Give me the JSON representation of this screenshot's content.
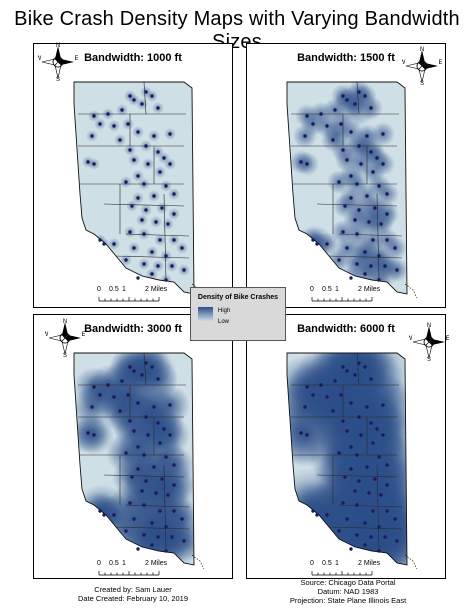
{
  "title": "Bike Crash Density Maps with Varying Bandwidth Sizes",
  "panels": [
    {
      "label": "Bandwidth: 1000 ft",
      "density": "low"
    },
    {
      "label": "Bandwidth: 1500 ft",
      "density": "medium"
    },
    {
      "label": "Bandwidth: 3000 ft",
      "density": "medium-high"
    },
    {
      "label": "Bandwidth: 6000 ft",
      "density": "high"
    }
  ],
  "north_arrow": {
    "n": "N",
    "s": "S",
    "e": "E",
    "w": "W"
  },
  "scale": {
    "t0": "0",
    "t1": "0.5",
    "t2": "1",
    "t3": "2 Miles"
  },
  "legend": {
    "title": "Density of Bike Crashes",
    "high": "High",
    "low": "Low",
    "high_color": "#2c4e88",
    "low_color": "#c9dbe6"
  },
  "credits": {
    "author": "Created by: Sam Lauer",
    "date": "Date Created: February 10, 2019",
    "source": "Source: Chicago Data Portal",
    "datum": "Datum: NAD 1983",
    "projection": "Projection: State Plane Illinois East"
  },
  "colors": {
    "map_fill": "#cfdfe6",
    "crash_point": "#1d1a5c",
    "boundary": "#111111",
    "kde_dark": "#2c4e88"
  }
}
